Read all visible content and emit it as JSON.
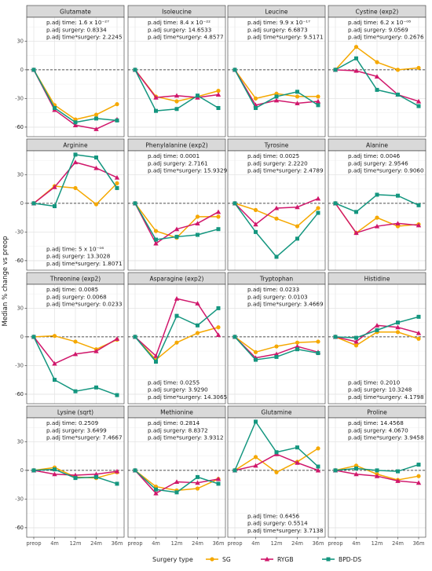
{
  "chart_data": {
    "type": "line",
    "ylabel": "Median % change vs preop",
    "xlabel": "",
    "x": [
      "preop",
      "4m",
      "12m",
      "24m",
      "36m"
    ],
    "ylim": [
      -70,
      55
    ],
    "yticks": [
      -60,
      -30,
      0,
      30
    ],
    "grid": true,
    "reference_line_y": 0,
    "legend": {
      "title": "Surgery type",
      "position": "bottom",
      "entries": [
        {
          "name": "SG",
          "color": "#F5A800",
          "marker": "circle"
        },
        {
          "name": "RYGB",
          "color": "#D0176B",
          "marker": "triangle"
        },
        {
          "name": "BPD-DS",
          "color": "#14967F",
          "marker": "square"
        }
      ]
    },
    "panels": [
      {
        "title": "Glutamate",
        "stats_position": "top",
        "stats": [
          "p.adj time: 1.6 x 10⁻²⁷",
          "p.adj surgery: 0.8334",
          "p.adj time*surgery: 2.2245"
        ],
        "series": [
          {
            "name": "SG",
            "values": [
              0,
              -37,
              -52,
              -47,
              -36
            ]
          },
          {
            "name": "RYGB",
            "values": [
              0,
              -42,
              -58,
              -62,
              -52
            ]
          },
          {
            "name": "BPD-DS",
            "values": [
              0,
              -40,
              -55,
              -51,
              -53
            ]
          }
        ]
      },
      {
        "title": "Isoleucine",
        "stats_position": "top",
        "stats": [
          "p.adj time: 8.4 x 10⁻²²",
          "p.adj surgery: 14.6533",
          "p.adj time*surgery: 4.8577"
        ],
        "series": [
          {
            "name": "SG",
            "values": [
              0,
              -28,
              -33,
              -28,
              -22
            ]
          },
          {
            "name": "RYGB",
            "values": [
              0,
              -29,
              -27,
              -29,
              -26
            ]
          },
          {
            "name": "BPD-DS",
            "values": [
              0,
              -43,
              -41,
              -27,
              -40
            ]
          }
        ]
      },
      {
        "title": "Leucine",
        "stats_position": "top",
        "stats": [
          "p.adj time: 9.9 x 10⁻¹⁷",
          "p.adj surgery: 6.6873",
          "p.adj time*surgery: 9.5171"
        ],
        "series": [
          {
            "name": "SG",
            "values": [
              0,
              -30,
              -25,
              -28,
              -28
            ]
          },
          {
            "name": "RYGB",
            "values": [
              0,
              -37,
              -32,
              -35,
              -33
            ]
          },
          {
            "name": "BPD-DS",
            "values": [
              0,
              -40,
              -28,
              -23,
              -37
            ]
          }
        ]
      },
      {
        "title": "Cystine (exp2)",
        "stats_position": "top",
        "stats": [
          "p.adj time: 6.2 x 10⁻⁰⁸",
          "p.adj surgery: 9.0569",
          "p.adj time*surgery: 0.2676"
        ],
        "series": [
          {
            "name": "SG",
            "values": [
              0,
              24,
              8,
              0,
              2
            ]
          },
          {
            "name": "RYGB",
            "values": [
              0,
              -1,
              -7,
              -26,
              -33
            ]
          },
          {
            "name": "BPD-DS",
            "values": [
              0,
              12,
              -21,
              -26,
              -38
            ]
          }
        ]
      },
      {
        "title": "Arginine",
        "stats_position": "bottom",
        "stats": [
          "p.adj time: 5 x 10⁻⁰⁶",
          "p.adj surgery: 13.3028",
          "p.adj time*surgery: 1.8071"
        ],
        "series": [
          {
            "name": "SG",
            "values": [
              0,
              18,
              16,
              -1,
              21
            ]
          },
          {
            "name": "RYGB",
            "values": [
              0,
              17,
              43,
              37,
              27
            ]
          },
          {
            "name": "BPD-DS",
            "values": [
              0,
              -3,
              51,
              48,
              16
            ]
          }
        ]
      },
      {
        "title": "Phenylalanine (exp2)",
        "stats_position": "top",
        "stats": [
          "p.adj time: 0.0001",
          "p.adj surgery: 2.7161",
          "p.adj time*surgery: 15.9329"
        ],
        "series": [
          {
            "name": "SG",
            "values": [
              0,
              -29,
              -36,
              -14,
              -14
            ]
          },
          {
            "name": "RYGB",
            "values": [
              0,
              -42,
              -27,
              -21,
              -9
            ]
          },
          {
            "name": "BPD-DS",
            "values": [
              0,
              -38,
              -35,
              -33,
              -27
            ]
          }
        ]
      },
      {
        "title": "Tyrosine",
        "stats_position": "top",
        "stats": [
          "p.adj time: 0.0025",
          "p.adj surgery: 2.2220",
          "p.adj time*surgery: 2.4789"
        ],
        "series": [
          {
            "name": "SG",
            "values": [
              0,
              -7,
              -16,
              -24,
              -5
            ]
          },
          {
            "name": "RYGB",
            "values": [
              0,
              -22,
              -5,
              -4,
              5
            ]
          },
          {
            "name": "BPD-DS",
            "values": [
              0,
              -30,
              -56,
              -37,
              -10
            ]
          }
        ]
      },
      {
        "title": "Alanine",
        "stats_position": "top",
        "stats": [
          "p.adj time: 0.0046",
          "p.adj surgery: 2.9546",
          "p.adj time*surgery: 0.9060"
        ],
        "series": [
          {
            "name": "SG",
            "values": [
              0,
              -31,
              -15,
              -24,
              -22
            ]
          },
          {
            "name": "RYGB",
            "values": [
              0,
              -31,
              -24,
              -21,
              -23
            ]
          },
          {
            "name": "BPD-DS",
            "values": [
              0,
              -9,
              9,
              8,
              -2
            ]
          }
        ]
      },
      {
        "title": "Threonine (exp2)",
        "stats_position": "top",
        "stats": [
          "p.adj time: 0.0085",
          "p.adj surgery: 0.0068",
          "p.adj time*surgery: 0.0233"
        ],
        "series": [
          {
            "name": "SG",
            "values": [
              0,
              1,
              -5,
              -13,
              -3
            ]
          },
          {
            "name": "RYGB",
            "values": [
              0,
              -28,
              -18,
              -15,
              -2
            ]
          },
          {
            "name": "BPD-DS",
            "values": [
              0,
              -45,
              -57,
              -53,
              -61
            ]
          }
        ]
      },
      {
        "title": "Asparagine (exp2)",
        "stats_position": "bottom",
        "stats": [
          "p.adj time: 0.0255",
          "p.adj surgery: 3.9290",
          "p.adj time*surgery: 14.3065"
        ],
        "series": [
          {
            "name": "SG",
            "values": [
              0,
              -24,
              -6,
              4,
              10
            ]
          },
          {
            "name": "RYGB",
            "values": [
              0,
              -20,
              40,
              35,
              2
            ]
          },
          {
            "name": "BPD-DS",
            "values": [
              0,
              -26,
              22,
              12,
              30
            ]
          }
        ]
      },
      {
        "title": "Tryptophan",
        "stats_position": "top",
        "stats": [
          "p.adj time: 0.0233",
          "p.adj surgery: 0.0103",
          "p.adj time*surgery: 3.4669"
        ],
        "series": [
          {
            "name": "SG",
            "values": [
              0,
              -16,
              -10,
              -6,
              -5
            ]
          },
          {
            "name": "RYGB",
            "values": [
              0,
              -22,
              -18,
              -10,
              -16
            ]
          },
          {
            "name": "BPD-DS",
            "values": [
              0,
              -24,
              -21,
              -13,
              -17
            ]
          }
        ]
      },
      {
        "title": "Histidine",
        "stats_position": "bottom",
        "stats": [
          "p.adj time: 0.2010",
          "p.adj surgery: 10.3248",
          "p.adj time*surgery: 4.1798"
        ],
        "series": [
          {
            "name": "SG",
            "values": [
              0,
              -9,
              5,
              5,
              -2
            ]
          },
          {
            "name": "RYGB",
            "values": [
              0,
              -5,
              12,
              10,
              4
            ]
          },
          {
            "name": "BPD-DS",
            "values": [
              0,
              -1,
              7,
              15,
              21
            ]
          }
        ]
      },
      {
        "title": "Lysine (sqrt)",
        "stats_position": "top",
        "stats": [
          "p.adj time: 0.2509",
          "p.adj surgery: 3.6499",
          "p.adj time*surgery: 7.4667"
        ],
        "series": [
          {
            "name": "SG",
            "values": [
              0,
              3,
              -7,
              -8,
              -2
            ]
          },
          {
            "name": "RYGB",
            "values": [
              0,
              -4,
              -5,
              -4,
              -1
            ]
          },
          {
            "name": "BPD-DS",
            "values": [
              0,
              1,
              -8,
              -7,
              -14
            ]
          }
        ]
      },
      {
        "title": "Methionine",
        "stats_position": "top",
        "stats": [
          "p.adj time: 0.2814",
          "p.adj surgery: 8.8372",
          "p.adj time*surgery: 3.9312"
        ],
        "series": [
          {
            "name": "SG",
            "values": [
              0,
              -17,
              -21,
              -19,
              -9
            ]
          },
          {
            "name": "RYGB",
            "values": [
              0,
              -24,
              -12,
              -13,
              -9
            ]
          },
          {
            "name": "BPD-DS",
            "values": [
              0,
              -20,
              -23,
              -7,
              -14
            ]
          }
        ]
      },
      {
        "title": "Glutamine",
        "stats_position": "bottom",
        "stats": [
          "p.adj time: 0.6456",
          "p.adj surgery: 0.5514",
          "p.adj time*surgery: 3.7138"
        ],
        "series": [
          {
            "name": "SG",
            "values": [
              0,
              14,
              -2,
              9,
              23
            ]
          },
          {
            "name": "RYGB",
            "values": [
              0,
              5,
              17,
              8,
              0
            ]
          },
          {
            "name": "BPD-DS",
            "values": [
              0,
              51,
              19,
              24,
              4
            ]
          }
        ]
      },
      {
        "title": "Proline",
        "stats_position": "top",
        "stats": [
          "p.adj time: 14.4568",
          "p.adj surgery: 4.0670",
          "p.adj time*surgery: 3.9458"
        ],
        "series": [
          {
            "name": "SG",
            "values": [
              0,
              5,
              -4,
              -10,
              -6
            ]
          },
          {
            "name": "RYGB",
            "values": [
              0,
              -4,
              -6,
              -11,
              -13
            ]
          },
          {
            "name": "BPD-DS",
            "values": [
              0,
              2,
              0,
              -1,
              6
            ]
          }
        ]
      }
    ]
  }
}
